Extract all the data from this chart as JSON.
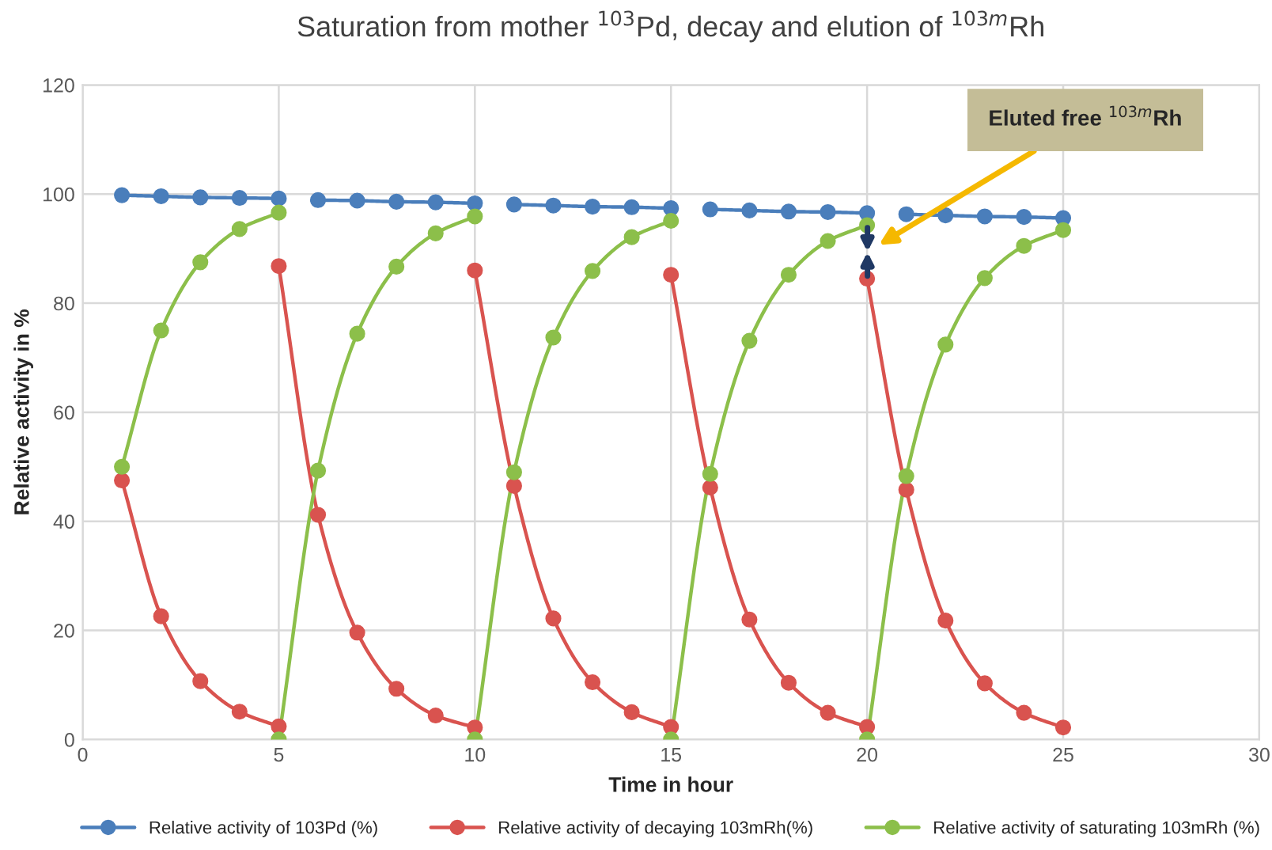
{
  "chart_data": {
    "type": "line",
    "title": "Saturation from mother $^{103}$Pd, decay and elution of $^{103m}$Rh",
    "xlabel": "Time in hour",
    "ylabel": "Relative activity in %",
    "xlim": [
      0,
      30
    ],
    "xticks": [
      0,
      5,
      10,
      15,
      20,
      25,
      30
    ],
    "ylim": [
      0,
      120
    ],
    "yticks": [
      0,
      20,
      40,
      60,
      80,
      100,
      120
    ],
    "grid": true,
    "legend": "bottom",
    "marker": "circle",
    "line_style": "solid",
    "series": [
      {
        "name": "Relative activity of 103Pd (%)",
        "color": "#4a7ebb",
        "x": [
          1,
          2,
          3,
          4,
          5
        ],
        "values": [
          99.8,
          99.6,
          99.4,
          99.3,
          99.2
        ]
      },
      {
        "name": "Relative activity of decaying 103mRh(%)",
        "color": "#d9534f",
        "x": [
          1,
          2,
          3,
          4,
          5
        ],
        "values": [
          47.5,
          22.6,
          10.7,
          5.1,
          2.4
        ]
      },
      {
        "name": "Relative activity of saturating 103mRh (%)",
        "color": "#8cbf4a",
        "x": [
          1,
          2,
          3,
          4,
          5
        ],
        "values": [
          50.0,
          75.0,
          87.5,
          93.6,
          96.6
        ]
      },
      {
        "color": "#4a7ebb",
        "x": [
          6,
          7,
          8,
          9,
          10
        ],
        "values": [
          98.9,
          98.8,
          98.6,
          98.5,
          98.3
        ]
      },
      {
        "color": "#d9534f",
        "x": [
          5,
          6,
          7,
          8,
          9,
          10
        ],
        "values": [
          86.8,
          41.2,
          19.6,
          9.3,
          4.4,
          2.2
        ]
      },
      {
        "color": "#8cbf4a",
        "x": [
          5,
          6,
          7,
          8,
          9,
          10
        ],
        "values": [
          0,
          49.3,
          74.4,
          86.7,
          92.8,
          95.9
        ]
      },
      {
        "color": "#4a7ebb",
        "x": [
          11,
          12,
          13,
          14,
          15
        ],
        "values": [
          98.1,
          97.9,
          97.7,
          97.6,
          97.4
        ]
      },
      {
        "color": "#d9534f",
        "x": [
          10,
          11,
          12,
          13,
          14,
          15
        ],
        "values": [
          86.0,
          46.5,
          22.2,
          10.5,
          5.0,
          2.3
        ]
      },
      {
        "color": "#8cbf4a",
        "x": [
          10,
          11,
          12,
          13,
          14,
          15
        ],
        "values": [
          0,
          49.0,
          73.7,
          85.9,
          92.1,
          95.1
        ]
      },
      {
        "color": "#4a7ebb",
        "x": [
          16,
          17,
          18,
          19,
          20
        ],
        "values": [
          97.2,
          97.0,
          96.8,
          96.7,
          96.5
        ]
      },
      {
        "color": "#d9534f",
        "x": [
          15,
          16,
          17,
          18,
          19,
          20
        ],
        "values": [
          85.2,
          46.2,
          22.0,
          10.4,
          4.9,
          2.3
        ]
      },
      {
        "color": "#8cbf4a",
        "x": [
          15,
          16,
          17,
          18,
          19,
          20
        ],
        "values": [
          0,
          48.7,
          73.1,
          85.2,
          91.4,
          94.3
        ]
      },
      {
        "color": "#4a7ebb",
        "x": [
          21,
          22,
          23,
          24,
          25
        ],
        "values": [
          96.3,
          96.1,
          95.9,
          95.8,
          95.6
        ]
      },
      {
        "color": "#d9534f",
        "x": [
          20,
          21,
          22,
          23,
          24,
          25
        ],
        "values": [
          84.5,
          45.8,
          21.8,
          10.3,
          4.9,
          2.2
        ]
      },
      {
        "color": "#8cbf4a",
        "x": [
          20,
          21,
          22,
          23,
          24,
          25
        ],
        "values": [
          0,
          48.3,
          72.4,
          84.6,
          90.5,
          93.4
        ]
      }
    ],
    "annotations": [
      "Eluted free $^{103m}$Rh"
    ]
  }
}
